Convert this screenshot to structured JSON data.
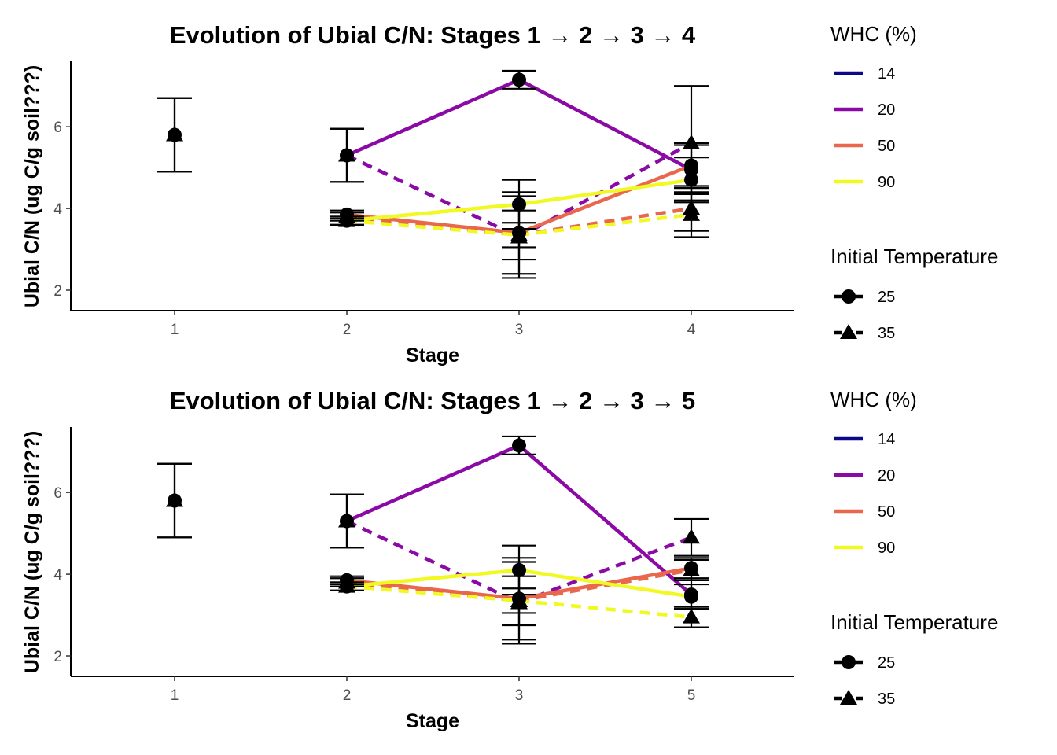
{
  "chart_data": [
    {
      "type": "line",
      "title": "Evolution of Ubial C/N: Stages 1 → 2 → 3 → 4",
      "xlabel": "Stage",
      "ylabel": "Ubial C/N (ug C/g soil???)",
      "categories": [
        "1",
        "2",
        "3",
        "4"
      ],
      "ylim": [
        1.5,
        7.6
      ],
      "yticks": [
        2,
        4,
        6
      ],
      "legend_position": "right",
      "grid": false,
      "legend": {
        "color_title": "WHC (%)",
        "shape_title": "Initial Temperature",
        "whc_levels": [
          {
            "label": "14",
            "color": "#0d0887"
          },
          {
            "label": "20",
            "color": "#8b0aa5"
          },
          {
            "label": "50",
            "color": "#e8674d"
          },
          {
            "label": "90",
            "color": "#f0f921"
          }
        ],
        "temp_levels": [
          {
            "label": "25",
            "shape": "circle",
            "linetype": "solid"
          },
          {
            "label": "35",
            "shape": "triangle",
            "linetype": "dashed"
          }
        ]
      },
      "series": [
        {
          "whc": "14",
          "temp": "25",
          "color": "#0d0887",
          "values": [
            5.8,
            null,
            null,
            null
          ],
          "err": [
            0.9,
            null,
            null,
            null
          ]
        },
        {
          "whc": "14",
          "temp": "35",
          "color": "#0d0887",
          "values": [
            5.8,
            null,
            null,
            null
          ],
          "err": [
            0.9,
            null,
            null,
            null
          ]
        },
        {
          "whc": "20",
          "temp": "25",
          "color": "#8b0aa5",
          "values": [
            null,
            5.3,
            7.15,
            4.95
          ],
          "err": [
            null,
            0.65,
            0.22,
            0.6
          ]
        },
        {
          "whc": "20",
          "temp": "35",
          "color": "#8b0aa5",
          "values": [
            null,
            5.3,
            3.3,
            5.6
          ],
          "err": [
            null,
            0.65,
            1.0,
            1.4
          ]
        },
        {
          "whc": "50",
          "temp": "25",
          "color": "#e8674d",
          "values": [
            null,
            3.85,
            3.4,
            5.05
          ],
          "err": [
            null,
            0.1,
            1.0,
            0.55
          ]
        },
        {
          "whc": "50",
          "temp": "35",
          "color": "#e8674d",
          "values": [
            null,
            3.8,
            3.35,
            4.0
          ],
          "err": [
            null,
            0.1,
            0.6,
            0.55
          ]
        },
        {
          "whc": "90",
          "temp": "25",
          "color": "#f0f921",
          "values": [
            null,
            3.7,
            4.1,
            4.7
          ],
          "err": [
            null,
            0.1,
            0.6,
            0.55
          ]
        },
        {
          "whc": "90",
          "temp": "35",
          "color": "#f0f921",
          "values": [
            null,
            3.7,
            3.35,
            3.85
          ],
          "err": [
            null,
            0.1,
            0.3,
            0.55
          ]
        }
      ]
    },
    {
      "type": "line",
      "title": "Evolution of Ubial C/N: Stages 1 → 2 → 3 → 5",
      "xlabel": "Stage",
      "ylabel": "Ubial C/N (ug C/g soil???)",
      "categories": [
        "1",
        "2",
        "3",
        "5"
      ],
      "ylim": [
        1.5,
        7.6
      ],
      "yticks": [
        2,
        4,
        6
      ],
      "legend_position": "right",
      "grid": false,
      "legend": {
        "color_title": "WHC (%)",
        "shape_title": "Initial Temperature",
        "whc_levels": [
          {
            "label": "14",
            "color": "#0d0887"
          },
          {
            "label": "20",
            "color": "#8b0aa5"
          },
          {
            "label": "50",
            "color": "#e8674d"
          },
          {
            "label": "90",
            "color": "#f0f921"
          }
        ],
        "temp_levels": [
          {
            "label": "25",
            "shape": "circle",
            "linetype": "solid"
          },
          {
            "label": "35",
            "shape": "triangle",
            "linetype": "dashed"
          }
        ]
      },
      "series": [
        {
          "whc": "14",
          "temp": "25",
          "color": "#0d0887",
          "values": [
            5.8,
            null,
            null,
            null
          ],
          "err": [
            0.9,
            null,
            null,
            null
          ]
        },
        {
          "whc": "14",
          "temp": "35",
          "color": "#0d0887",
          "values": [
            5.8,
            null,
            null,
            null
          ],
          "err": [
            0.9,
            null,
            null,
            null
          ]
        },
        {
          "whc": "20",
          "temp": "25",
          "color": "#8b0aa5",
          "values": [
            null,
            5.3,
            7.15,
            3.5
          ],
          "err": [
            null,
            0.65,
            0.22,
            0.35
          ]
        },
        {
          "whc": "20",
          "temp": "35",
          "color": "#8b0aa5",
          "values": [
            null,
            5.3,
            3.3,
            4.9
          ],
          "err": [
            null,
            0.65,
            1.0,
            0.45
          ]
        },
        {
          "whc": "50",
          "temp": "25",
          "color": "#e8674d",
          "values": [
            null,
            3.85,
            3.4,
            4.15
          ],
          "err": [
            null,
            0.1,
            1.0,
            0.25
          ]
        },
        {
          "whc": "50",
          "temp": "35",
          "color": "#e8674d",
          "values": [
            null,
            3.8,
            3.35,
            4.1
          ],
          "err": [
            null,
            0.1,
            0.6,
            0.25
          ]
        },
        {
          "whc": "90",
          "temp": "25",
          "color": "#f0f921",
          "values": [
            null,
            3.7,
            4.1,
            3.45
          ],
          "err": [
            null,
            0.1,
            0.6,
            0.3
          ]
        },
        {
          "whc": "90",
          "temp": "35",
          "color": "#f0f921",
          "values": [
            null,
            3.7,
            3.35,
            2.95
          ],
          "err": [
            null,
            0.1,
            0.3,
            0.25
          ]
        }
      ]
    }
  ]
}
